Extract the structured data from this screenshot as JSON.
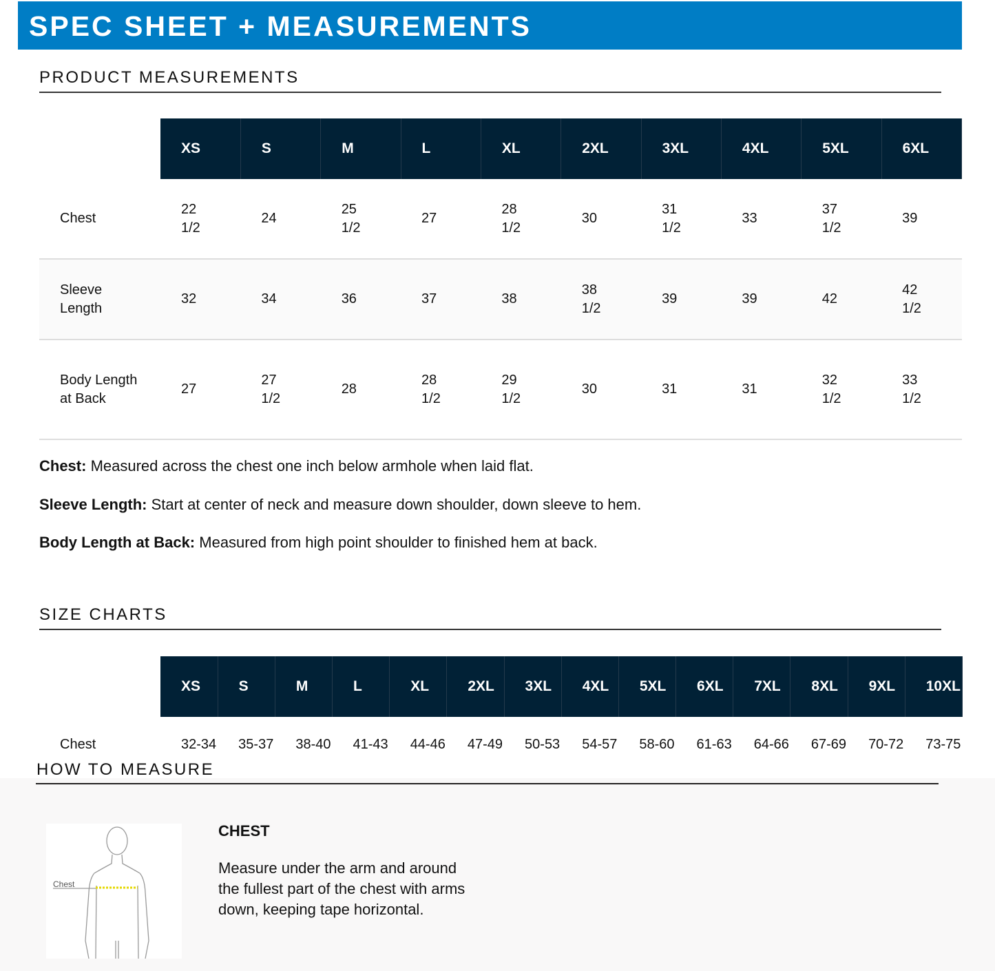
{
  "header": {
    "title": "SPEC SHEET + MEASUREMENTS",
    "color": "#007dc5"
  },
  "product_measurements": {
    "heading": "PRODUCT MEASUREMENTS",
    "sizes": [
      "XS",
      "S",
      "M",
      "L",
      "XL",
      "2XL",
      "3XL",
      "4XL",
      "5XL",
      "6XL"
    ],
    "rows": [
      {
        "label": "Chest",
        "values": [
          "22 1/2",
          "24",
          "25 1/2",
          "27",
          "28 1/2",
          "30",
          "31 1/2",
          "33",
          "37 1/2",
          "39"
        ]
      },
      {
        "label": "Sleeve Length",
        "values": [
          "32",
          "34",
          "36",
          "37",
          "38",
          "38 1/2",
          "39",
          "39",
          "42",
          "42 1/2"
        ]
      },
      {
        "label": "Body Length at Back",
        "values": [
          "27",
          "27 1/2",
          "28",
          "28 1/2",
          "29 1/2",
          "30",
          "31",
          "31",
          "32 1/2",
          "33 1/2"
        ]
      }
    ],
    "notes": [
      {
        "term": "Chest:",
        "text": " Measured across the chest one inch below armhole when laid flat."
      },
      {
        "term": "Sleeve Length:",
        "text": " Start at center of neck and measure down shoulder, down sleeve to hem."
      },
      {
        "term": "Body Length at Back:",
        "text": " Measured from high point shoulder to finished hem at back."
      }
    ]
  },
  "size_charts": {
    "heading": "SIZE CHARTS",
    "sizes": [
      "XS",
      "S",
      "M",
      "L",
      "XL",
      "2XL",
      "3XL",
      "4XL",
      "5XL",
      "6XL",
      "7XL",
      "8XL",
      "9XL",
      "10XL"
    ],
    "rows": [
      {
        "label": "Chest",
        "values": [
          "32-34",
          "35-37",
          "38-40",
          "41-43",
          "44-46",
          "47-49",
          "50-53",
          "54-57",
          "58-60",
          "61-63",
          "64-66",
          "67-69",
          "70-72",
          "73-75"
        ]
      }
    ]
  },
  "how_to_measure": {
    "heading": "HOW TO MEASURE",
    "figure_label": "Chest",
    "title": "CHEST",
    "text": "Measure under the arm and around the fullest part of the chest with arms down, keeping tape horizontal."
  }
}
